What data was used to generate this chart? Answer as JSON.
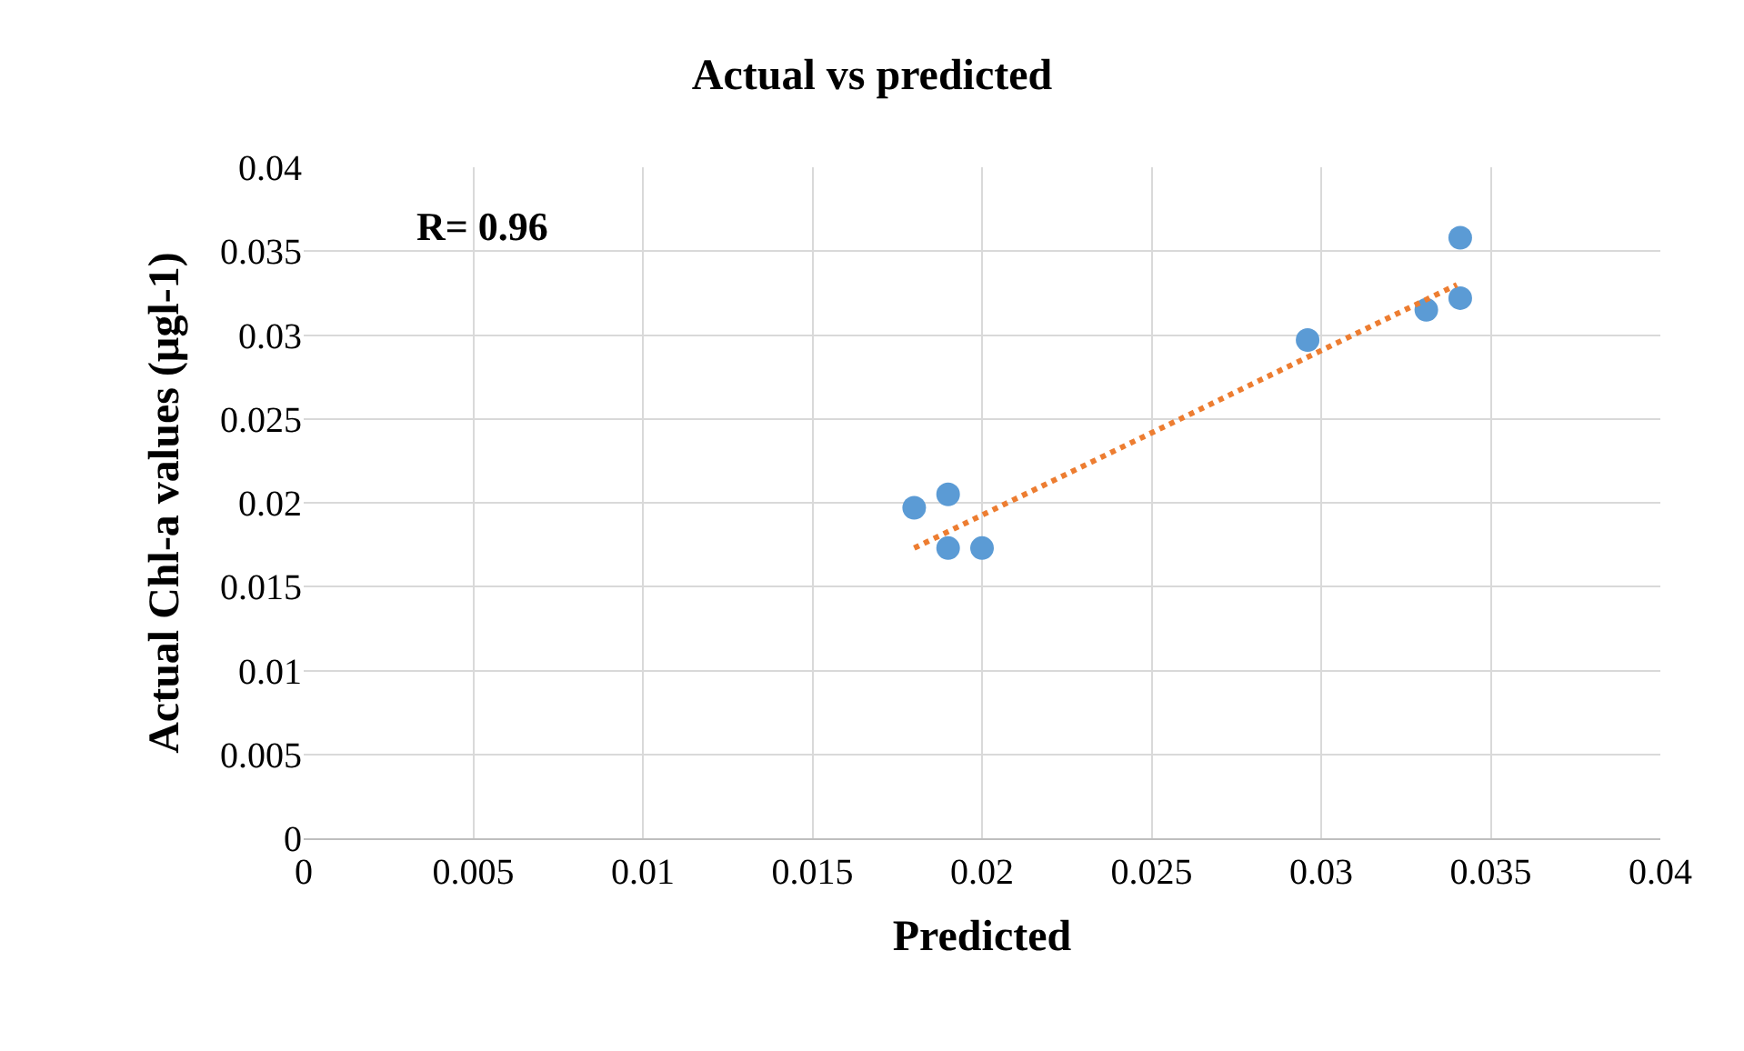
{
  "chart_data": {
    "type": "scatter",
    "title": "Actual vs predicted",
    "xlabel": "Predicted",
    "ylabel": "Actual Chl-a values (µgl-1)",
    "annotations": [
      "R= 0.96"
    ],
    "series": [
      {
        "color": "#5b9bd5",
        "marker": "circle",
        "x": [
          0.018,
          0.019,
          0.019,
          0.02,
          0.0296,
          0.0331,
          0.0341,
          0.0341
        ],
        "values": [
          0.0197,
          0.0205,
          0.0173,
          0.0173,
          0.0297,
          0.0315,
          0.0358,
          0.0322
        ]
      },
      {
        "type": "line",
        "color": "#ed7d31",
        "line_style": "dotted",
        "marker": "none",
        "x": [
          0.018,
          0.034
        ],
        "values": [
          0.0173,
          0.033
        ]
      }
    ],
    "xlim": [
      0,
      0.04
    ],
    "xticks": [
      0,
      0.005,
      0.01,
      0.015,
      0.02,
      0.025,
      0.03,
      0.035,
      0.04
    ],
    "ylim": [
      0,
      0.04
    ],
    "yticks": [
      0,
      0.005,
      0.01,
      0.015,
      0.02,
      0.025,
      0.03,
      0.035,
      0.04
    ],
    "grid": true
  }
}
